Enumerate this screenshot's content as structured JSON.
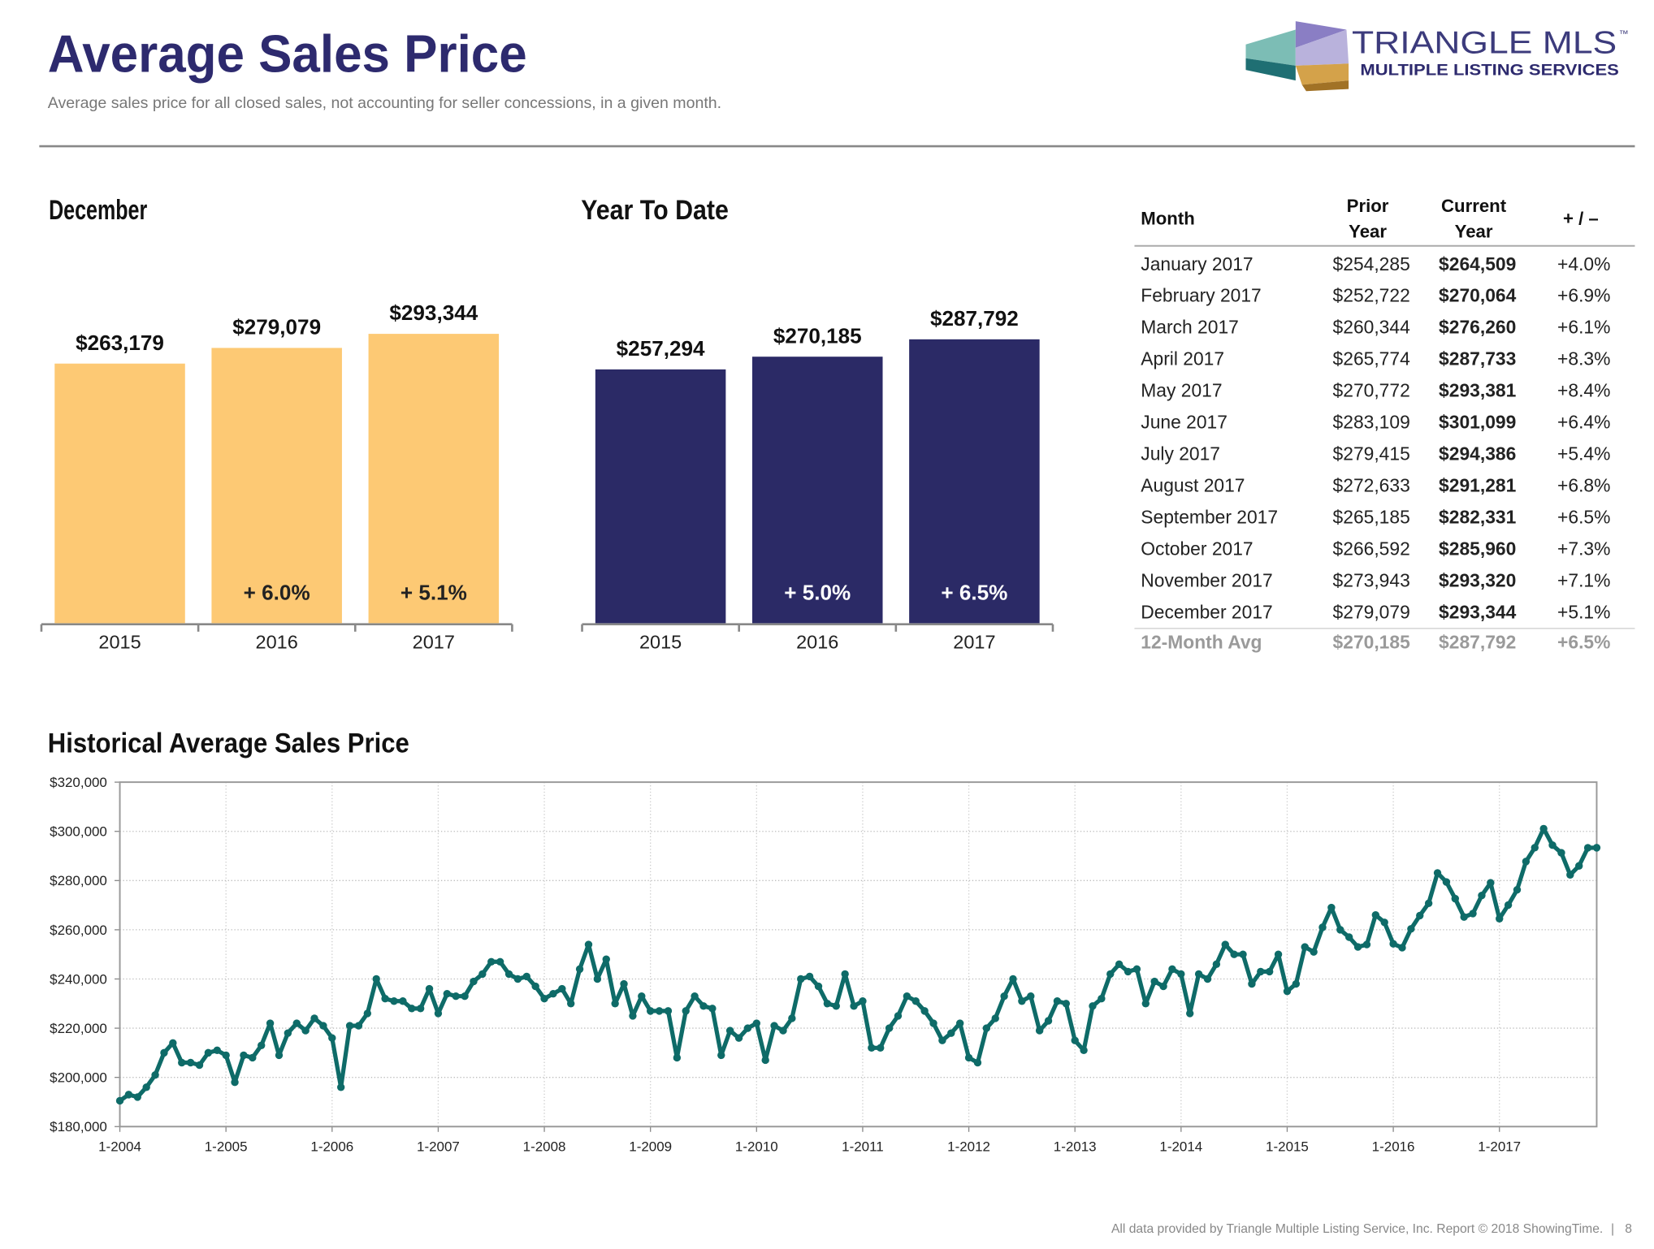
{
  "header": {
    "title": "Average Sales Price",
    "subtitle": "Average sales price for all closed sales, not accounting for seller concessions, in a given month.",
    "logo_name": "TRIANGLE MLS",
    "logo_mark": "™",
    "logo_tagline": "MULTIPLE LISTING SERVICES"
  },
  "chart_data": [
    {
      "type": "bar",
      "title": "December",
      "categories": [
        "2015",
        "2016",
        "2017"
      ],
      "values": [
        263179,
        279079,
        293344
      ],
      "value_labels": [
        "$263,179",
        "$279,079",
        "$293,344"
      ],
      "change_labels": [
        null,
        "+ 6.0%",
        "+ 5.1%"
      ],
      "color": "#fdc974"
    },
    {
      "type": "bar",
      "title": "Year To Date",
      "categories": [
        "2015",
        "2016",
        "2017"
      ],
      "values": [
        257294,
        270185,
        287792
      ],
      "value_labels": [
        "$257,294",
        "$270,185",
        "$287,792"
      ],
      "change_labels": [
        null,
        "+ 5.0%",
        "+ 6.5%"
      ],
      "color": "#2b2a66"
    },
    {
      "type": "line",
      "title": "Historical Average Sales Price",
      "color": "#0e6b68",
      "grid": true,
      "ylim": [
        180000,
        320000
      ],
      "yticks": [
        {
          "value": 180000,
          "label": "$180,000"
        },
        {
          "value": 200000,
          "label": "$200,000"
        },
        {
          "value": 220000,
          "label": "$220,000"
        },
        {
          "value": 240000,
          "label": "$240,000"
        },
        {
          "value": 260000,
          "label": "$260,000"
        },
        {
          "value": 280000,
          "label": "$280,000"
        },
        {
          "value": 300000,
          "label": "$300,000"
        },
        {
          "value": 320000,
          "label": "$320,000"
        }
      ],
      "categories": [
        "1-2004",
        null,
        null,
        null,
        null,
        null,
        null,
        null,
        null,
        null,
        null,
        null,
        "1-2005",
        null,
        null,
        null,
        null,
        null,
        null,
        null,
        null,
        null,
        null,
        null,
        "1-2006",
        null,
        null,
        null,
        null,
        null,
        null,
        null,
        null,
        null,
        null,
        null,
        "1-2007",
        null,
        null,
        null,
        null,
        null,
        null,
        null,
        null,
        null,
        null,
        null,
        "1-2008",
        null,
        null,
        null,
        null,
        null,
        null,
        null,
        null,
        null,
        null,
        null,
        "1-2009",
        null,
        null,
        null,
        null,
        null,
        null,
        null,
        null,
        null,
        null,
        null,
        "1-2010",
        null,
        null,
        null,
        null,
        null,
        null,
        null,
        null,
        null,
        null,
        null,
        "1-2011",
        null,
        null,
        null,
        null,
        null,
        null,
        null,
        null,
        null,
        null,
        null,
        "1-2012",
        null,
        null,
        null,
        null,
        null,
        null,
        null,
        null,
        null,
        null,
        null,
        "1-2013",
        null,
        null,
        null,
        null,
        null,
        null,
        null,
        null,
        null,
        null,
        null,
        "1-2014",
        null,
        null,
        null,
        null,
        null,
        null,
        null,
        null,
        null,
        null,
        null,
        "1-2015",
        null,
        null,
        null,
        null,
        null,
        null,
        null,
        null,
        null,
        null,
        null,
        "1-2016",
        null,
        null,
        null,
        null,
        null,
        null,
        null,
        null,
        null,
        null,
        null,
        "1-2017",
        null,
        null,
        null,
        null,
        null,
        null,
        null,
        null,
        null,
        null,
        null
      ],
      "values": [
        190500,
        193000,
        192000,
        196000,
        201000,
        210000,
        214000,
        206000,
        206000,
        205000,
        210000,
        211000,
        209000,
        198000,
        209000,
        208000,
        213000,
        222000,
        209000,
        218000,
        222000,
        219000,
        224000,
        221000,
        216000,
        196000,
        221000,
        221000,
        226000,
        240000,
        232000,
        231000,
        231000,
        228000,
        228000,
        236000,
        226000,
        234000,
        233000,
        233000,
        239000,
        242000,
        247000,
        247000,
        242000,
        240000,
        241000,
        237000,
        232000,
        234000,
        236000,
        230000,
        244000,
        254000,
        240000,
        248000,
        230000,
        238000,
        225000,
        233000,
        227000,
        227000,
        227000,
        208000,
        227000,
        233000,
        229000,
        228000,
        209000,
        219000,
        216000,
        220000,
        222000,
        207000,
        221000,
        219000,
        224000,
        240000,
        241000,
        237000,
        230000,
        229000,
        242000,
        229000,
        231000,
        212000,
        212000,
        220000,
        225000,
        233000,
        231000,
        227000,
        222000,
        215000,
        218000,
        222000,
        208000,
        206000,
        220000,
        224000,
        233000,
        240000,
        231000,
        233000,
        219000,
        223000,
        231000,
        230000,
        215000,
        211000,
        229000,
        232000,
        242000,
        246000,
        243000,
        244000,
        230000,
        239000,
        237000,
        244000,
        242000,
        226000,
        242000,
        240000,
        246000,
        254000,
        250000,
        250000,
        238000,
        243000,
        243000,
        250000,
        235000,
        238000,
        253000,
        251000,
        261000,
        269000,
        260000,
        257000,
        253000,
        254000,
        266000,
        263000,
        254285,
        252722,
        260344,
        265774,
        270772,
        283109,
        279415,
        272633,
        265185,
        266592,
        273943,
        279079,
        264509,
        270064,
        276260,
        287733,
        293381,
        301099,
        294386,
        291281,
        282331,
        285960,
        293320,
        293344
      ]
    }
  ],
  "table": {
    "header": [
      [
        "Month"
      ],
      [
        "Prior",
        "Year"
      ],
      [
        "Current",
        "Year"
      ],
      [
        "+ / –"
      ]
    ],
    "rows": [
      [
        "January 2017",
        "$254,285",
        "$264,509",
        "+4.0%"
      ],
      [
        "February 2017",
        "$252,722",
        "$270,064",
        "+6.9%"
      ],
      [
        "March 2017",
        "$260,344",
        "$276,260",
        "+6.1%"
      ],
      [
        "April 2017",
        "$265,774",
        "$287,733",
        "+8.3%"
      ],
      [
        "May 2017",
        "$270,772",
        "$293,381",
        "+8.4%"
      ],
      [
        "June 2017",
        "$283,109",
        "$301,099",
        "+6.4%"
      ],
      [
        "July 2017",
        "$279,415",
        "$294,386",
        "+5.4%"
      ],
      [
        "August 2017",
        "$272,633",
        "$291,281",
        "+6.8%"
      ],
      [
        "September 2017",
        "$265,185",
        "$282,331",
        "+6.5%"
      ],
      [
        "October 2017",
        "$266,592",
        "$285,960",
        "+7.3%"
      ],
      [
        "November 2017",
        "$273,943",
        "$293,320",
        "+7.1%"
      ],
      [
        "December 2017",
        "$279,079",
        "$293,344",
        "+5.1%"
      ]
    ],
    "summary_row": [
      "12-Month Avg",
      "$270,185",
      "$287,792",
      "+6.5%"
    ]
  },
  "footer": {
    "text": "All data provided by Triangle Multiple Listing Service, Inc. Report © 2018 ShowingTime.",
    "separator": "|",
    "page": "8"
  }
}
